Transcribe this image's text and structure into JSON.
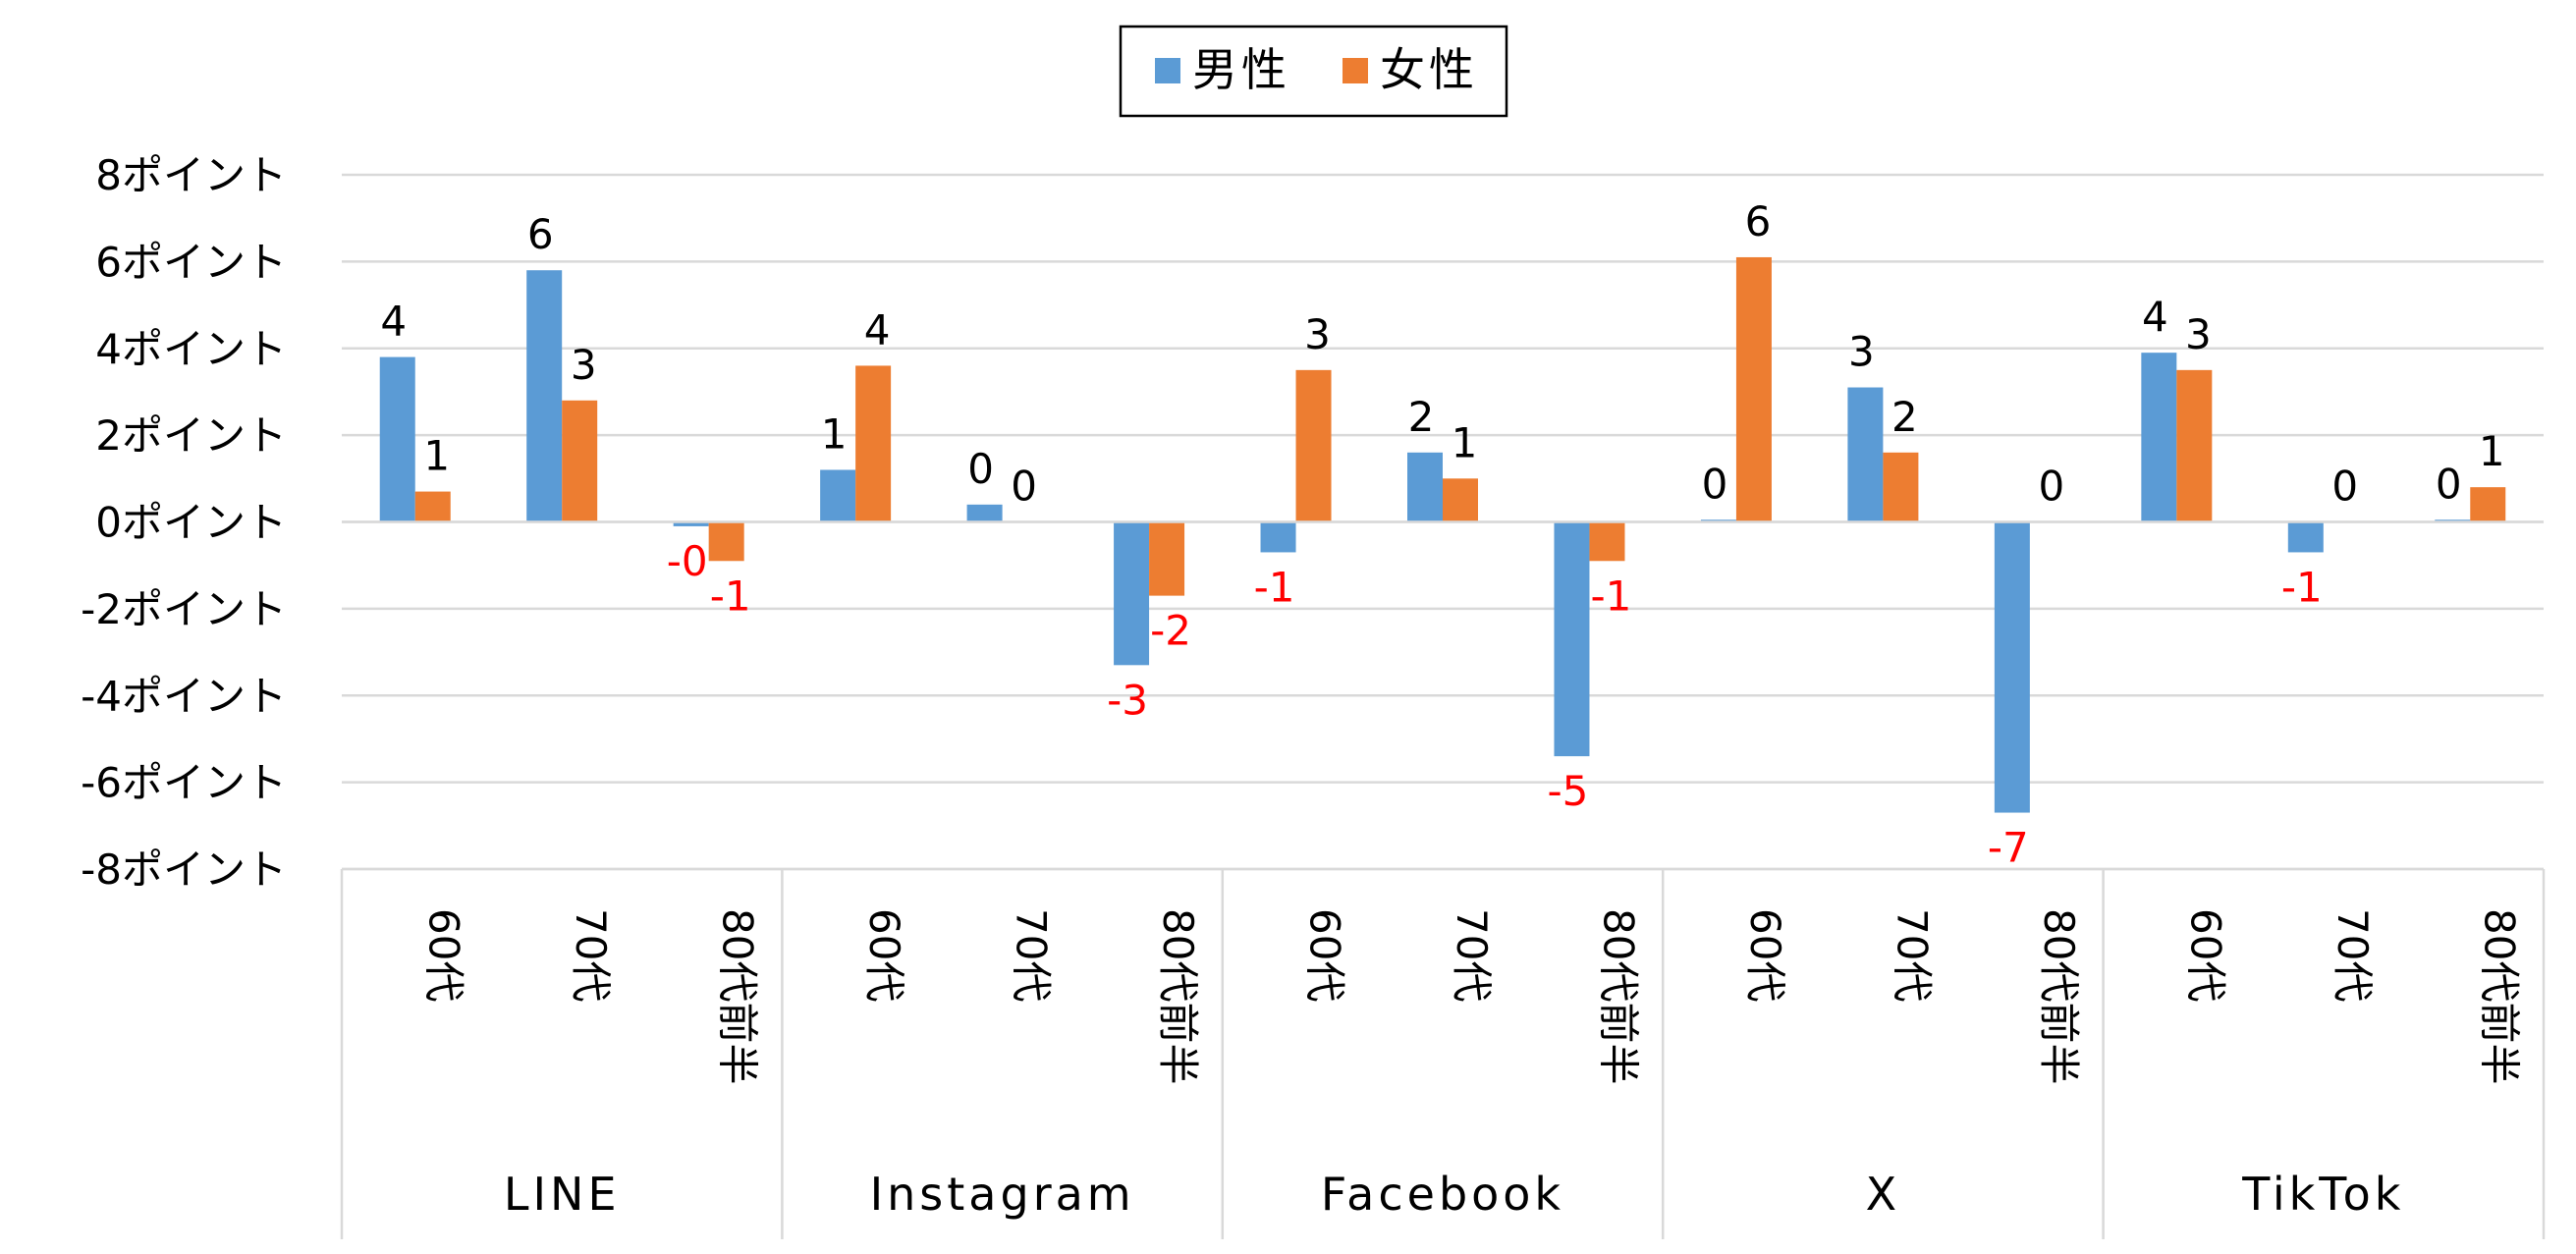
{
  "chart_data": {
    "type": "bar",
    "title": "",
    "xlabel": "",
    "ylabel": "",
    "ylim": [
      -8,
      8
    ],
    "y_ticks": [
      {
        "value": 8,
        "label": "8ポイント"
      },
      {
        "value": 6,
        "label": "6ポイント"
      },
      {
        "value": 4,
        "label": "4ポイント"
      },
      {
        "value": 2,
        "label": "2ポイント"
      },
      {
        "value": 0,
        "label": "0ポイント"
      },
      {
        "value": -2,
        "label": "-2ポイント"
      },
      {
        "value": -4,
        "label": "-4ポイント"
      },
      {
        "value": -6,
        "label": "-6ポイント"
      },
      {
        "value": -8,
        "label": "-8ポイント"
      }
    ],
    "grid": true,
    "legend_position": "top-center",
    "groups": [
      {
        "name": "LINE",
        "categories": [
          "60代",
          "70代",
          "80代前半"
        ]
      },
      {
        "name": "Instagram",
        "categories": [
          "60代",
          "70代",
          "80代前半"
        ]
      },
      {
        "name": "Facebook",
        "categories": [
          "60代",
          "70代",
          "80代前半"
        ]
      },
      {
        "name": "X",
        "categories": [
          "60代",
          "70代",
          "80代前半"
        ]
      },
      {
        "name": "TikTok",
        "categories": [
          "60代",
          "70代",
          "80代前半"
        ]
      }
    ],
    "series": [
      {
        "name": "男性",
        "color": "#5B9BD5",
        "values": [
          3.8,
          5.8,
          -0.1,
          1.2,
          0.4,
          -3.3,
          -0.7,
          1.6,
          -5.4,
          0.05,
          3.1,
          -6.7,
          3.9,
          -0.7,
          0.05
        ],
        "labels": [
          "4",
          "6",
          "-0",
          "1",
          "0",
          "-3",
          "-1",
          "2",
          "-5",
          "0",
          "3",
          "-7",
          "4",
          "-1",
          "0"
        ]
      },
      {
        "name": "女性",
        "color": "#ED7D31",
        "values": [
          0.7,
          2.8,
          -0.9,
          3.6,
          0.0,
          -1.7,
          3.5,
          1.0,
          -0.9,
          6.1,
          1.6,
          0.0,
          3.5,
          0.0,
          0.8
        ],
        "labels": [
          "1",
          "3",
          "-1",
          "4",
          "0",
          "-2",
          "3",
          "1",
          "-1",
          "6",
          "2",
          "0",
          "3",
          "0",
          "1"
        ]
      }
    ],
    "positive_label_color": "#000000",
    "negative_label_color": "#FF0000"
  }
}
